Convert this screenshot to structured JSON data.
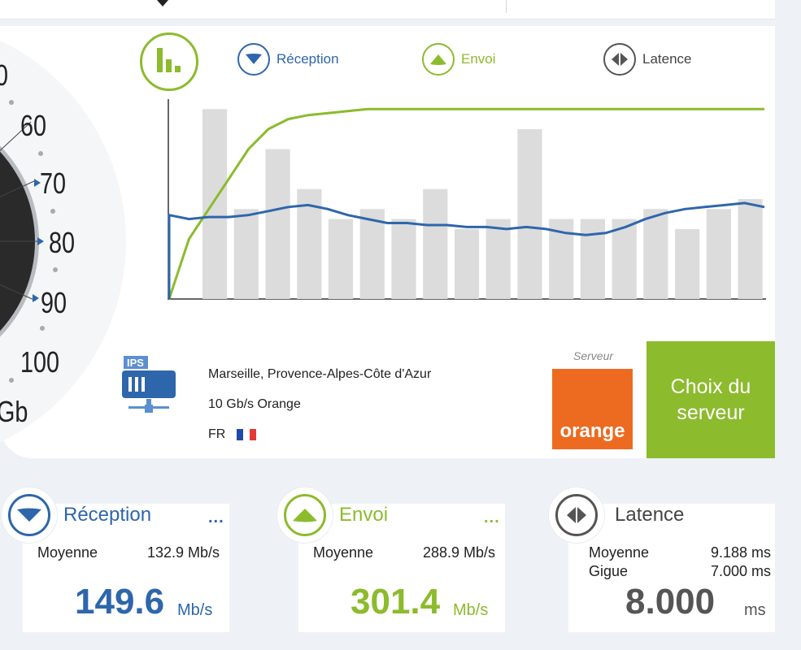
{
  "gauge": {
    "ticks": [
      "0",
      "60",
      "70",
      "80",
      "90",
      "100"
    ],
    "unit": "Gb"
  },
  "legend": {
    "reception": "Réception",
    "envoi": "Envoi",
    "latence": "Latence"
  },
  "chart_data": {
    "type": "bar",
    "bars": [
      0,
      95,
      45,
      75,
      55,
      40,
      45,
      40,
      55,
      35,
      40,
      85,
      40,
      40,
      40,
      45,
      35,
      45,
      50
    ],
    "series": [
      {
        "name": "Réception",
        "color": "#2e66ab",
        "values": [
          0.42,
          0.4,
          0.41,
          0.41,
          0.42,
          0.44,
          0.46,
          0.47,
          0.45,
          0.42,
          0.4,
          0.38,
          0.38,
          0.37,
          0.37,
          0.36,
          0.36,
          0.35,
          0.36,
          0.35,
          0.33,
          0.32,
          0.33,
          0.36,
          0.4,
          0.43,
          0.45,
          0.46,
          0.47,
          0.48,
          0.46
        ]
      },
      {
        "name": "Envoi",
        "color": "#8cbb2d",
        "values": [
          0.0,
          0.3,
          0.45,
          0.6,
          0.75,
          0.85,
          0.9,
          0.92,
          0.93,
          0.94,
          0.95,
          0.95,
          0.95,
          0.95,
          0.95,
          0.95,
          0.95,
          0.95,
          0.95,
          0.95,
          0.95,
          0.95,
          0.95,
          0.95,
          0.95,
          0.95,
          0.95,
          0.95,
          0.95,
          0.95,
          0.95
        ]
      }
    ]
  },
  "server": {
    "location": "Marseille, Provence-Alpes-Côte d'Azur",
    "isp": "10 Gb/s Orange",
    "country": "FR",
    "label": "Serveur",
    "logo_text": "orange",
    "button": "Choix du serveur"
  },
  "stats": {
    "reception": {
      "title": "Réception",
      "more": "...",
      "avg_label": "Moyenne",
      "avg_value": "132.9 Mb/s",
      "big": "149.6",
      "unit": "Mb/s",
      "color": "#2e66ab"
    },
    "envoi": {
      "title": "Envoi",
      "more": "...",
      "avg_label": "Moyenne",
      "avg_value": "288.9 Mb/s",
      "big": "301.4",
      "unit": "Mb/s",
      "color": "#8cbb2d"
    },
    "latence": {
      "title": "Latence",
      "avg_label": "Moyenne",
      "avg_value": "9.188 ms",
      "jitter_label": "Gigue",
      "jitter_value": "7.000 ms",
      "big": "8.000",
      "unit": "ms",
      "color": "#555555"
    }
  }
}
